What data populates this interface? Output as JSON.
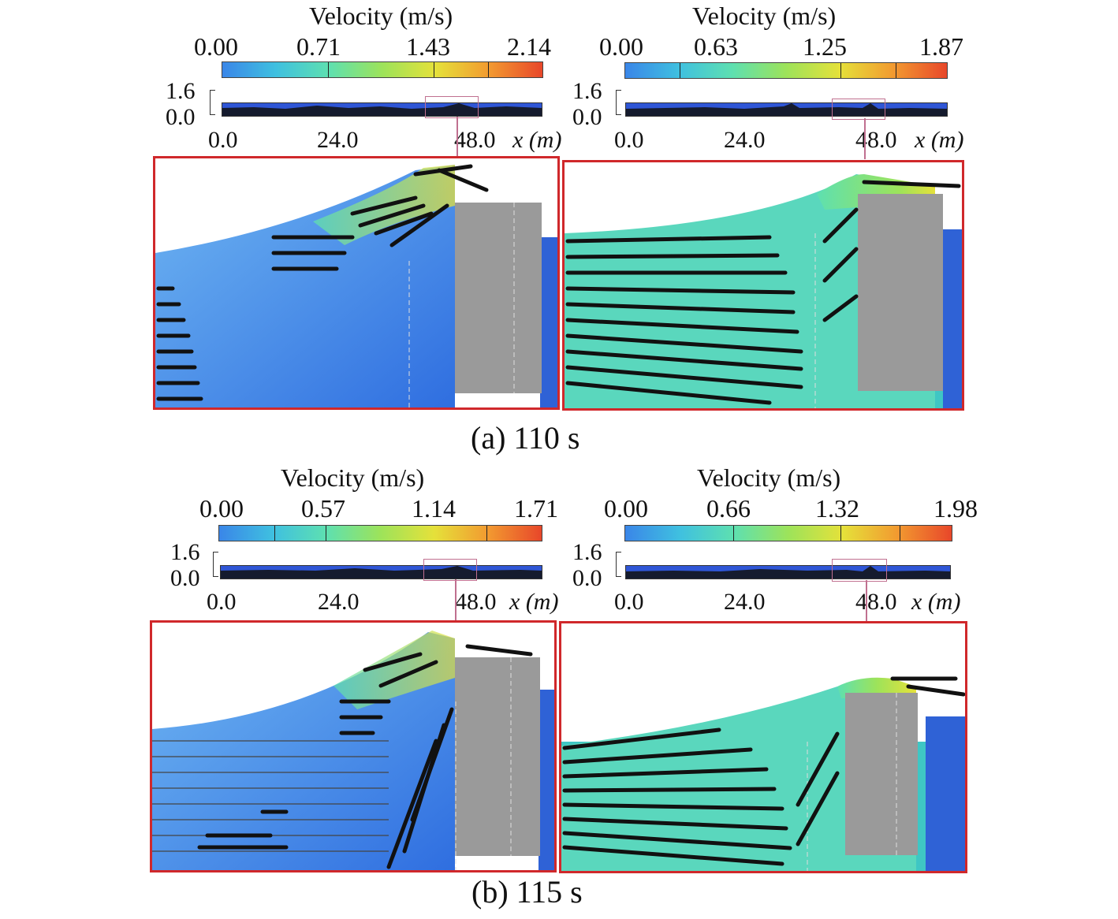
{
  "figure": {
    "velocity_label": "Velocity (m/s)",
    "depth_ticks": [
      "1.6",
      "0.0"
    ],
    "x_label": "x (m)",
    "colormap": [
      "#3a86e8",
      "#3fc0e0",
      "#5ee0b0",
      "#9de35a",
      "#e5e13a",
      "#f29a30",
      "#e8472a"
    ],
    "rows": [
      {
        "caption": "(a) 110 s",
        "panels": [
          {
            "cb_ticks": [
              "0.00",
              "0.71",
              "1.43",
              "2.14"
            ],
            "x_ticks": [
              "0.0",
              "24.0",
              "48.0"
            ]
          },
          {
            "cb_ticks": [
              "0.00",
              "0.63",
              "1.25",
              "1.87"
            ],
            "x_ticks": [
              "0.0",
              "24.0",
              "48.0"
            ]
          }
        ]
      },
      {
        "caption": "(b) 115 s",
        "panels": [
          {
            "cb_ticks": [
              "0.00",
              "0.57",
              "1.14",
              "1.71"
            ],
            "x_ticks": [
              "0.0",
              "24.0",
              "48.0"
            ]
          },
          {
            "cb_ticks": [
              "0.00",
              "0.66",
              "1.32",
              "1.98"
            ],
            "x_ticks": [
              "0.0",
              "24.0",
              "48.0"
            ]
          }
        ]
      }
    ]
  }
}
